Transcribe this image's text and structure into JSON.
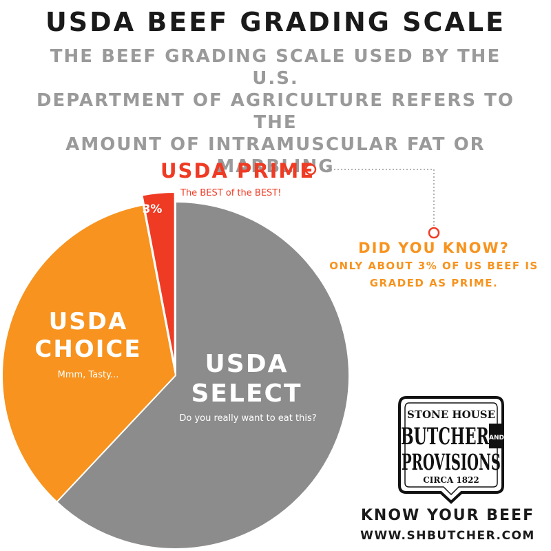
{
  "header": {
    "title": "USDA BEEF GRADING SCALE",
    "subtitle_lines": [
      "THE BEEF GRADING SCALE USED BY THE U.S.",
      "DEPARTMENT OF AGRICULTURE REFERS TO THE",
      "AMOUNT OF INTRAMUSCULAR FAT OR MARBLING"
    ]
  },
  "chart_data": {
    "type": "pie",
    "slices": [
      {
        "grade_line1": "USDA",
        "grade_line2": "SELECT",
        "caption": "Do you really want to eat this?",
        "value": 62,
        "color": "#8c8c8c"
      },
      {
        "grade_line1": "USDA",
        "grade_line2": "CHOICE",
        "caption": "Mmm, Tasty...",
        "value": 35,
        "color": "#f7931e"
      },
      {
        "grade_line1": "USDA PRIME",
        "grade_line2": "",
        "caption": "The BEST of the BEST!",
        "value": 3,
        "value_label": "3%",
        "color": "#ef3b24",
        "exploded": true
      }
    ]
  },
  "fact": {
    "question": "DID YOU KNOW?",
    "text_lines": [
      "ONLY ABOUT 3% OF US BEEF IS",
      "GRADED AS PRIME."
    ]
  },
  "logo": {
    "line1": "STONE HOUSE",
    "line2": "BUTCHER",
    "line3": "PROVISIONS",
    "and": "AND",
    "circa": "CIRCA 1822"
  },
  "footer": {
    "tagline": "KNOW YOUR BEEF",
    "url": "WWW.SHBUTCHER.COM"
  },
  "colors": {
    "prime": "#ef3b24",
    "choice": "#f7931e",
    "select": "#8c8c8c",
    "subtitle": "#9a9a9a"
  }
}
